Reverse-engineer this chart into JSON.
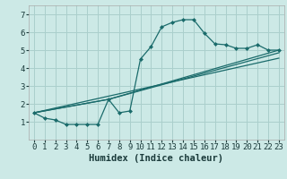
{
  "background_color": "#cce9e6",
  "grid_color": "#aacfcc",
  "line_color": "#1a6b6b",
  "marker_color": "#1a6b6b",
  "xlabel": "Humidex (Indice chaleur)",
  "xlim": [
    -0.5,
    23.5
  ],
  "ylim": [
    0.0,
    7.5
  ],
  "xticks": [
    0,
    1,
    2,
    3,
    4,
    5,
    6,
    7,
    8,
    9,
    10,
    11,
    12,
    13,
    14,
    15,
    16,
    17,
    18,
    19,
    20,
    21,
    22,
    23
  ],
  "yticks": [
    1,
    2,
    3,
    4,
    5,
    6,
    7
  ],
  "series0_x": [
    0,
    1,
    2,
    3,
    4,
    5,
    6,
    7,
    8,
    9,
    10,
    11,
    12,
    13,
    14,
    15,
    16,
    17,
    18,
    19,
    20,
    21,
    22,
    23
  ],
  "series0_y": [
    1.5,
    1.2,
    1.1,
    0.85,
    0.85,
    0.85,
    0.85,
    2.25,
    1.5,
    1.6,
    4.5,
    5.2,
    6.3,
    6.55,
    6.7,
    6.7,
    5.95,
    5.35,
    5.3,
    5.1,
    5.1,
    5.3,
    5.0,
    5.0
  ],
  "series1_x": [
    0,
    7,
    23
  ],
  "series1_y": [
    1.5,
    2.25,
    5.0
  ],
  "series2_x": [
    0,
    7,
    23
  ],
  "series2_y": [
    1.5,
    2.25,
    4.85
  ],
  "series3_x": [
    0,
    23
  ],
  "series3_y": [
    1.5,
    4.55
  ],
  "tick_fontsize": 6.5,
  "xlabel_fontsize": 7.5
}
